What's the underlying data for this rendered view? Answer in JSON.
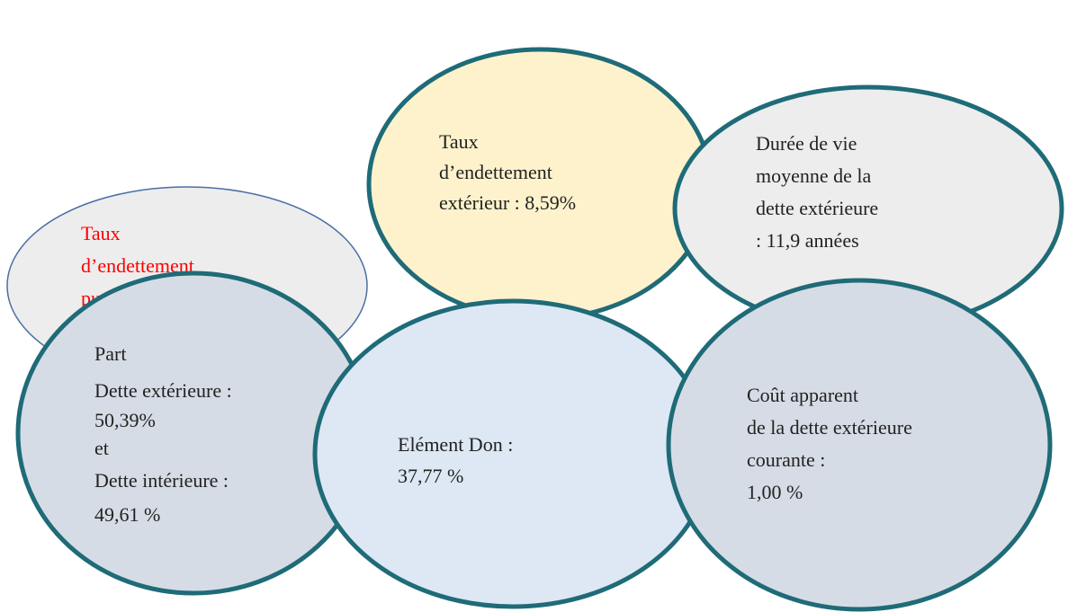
{
  "nodes": [
    {
      "lines": [
        "Taux",
        "d’endettement",
        "pu"
      ]
    },
    {
      "lines": [
        "Taux",
        "d’endettement",
        "extérieur : 8,59%"
      ]
    },
    {
      "lines": [
        "Durée de vie",
        "moyenne de la",
        "dette extérieure",
        ": 11,9 années"
      ]
    },
    {
      "lines": [
        "Part",
        "Dette extérieure :",
        "50,39%",
        "et",
        "Dette intérieure :",
        "49,61 %"
      ]
    },
    {
      "lines": [
        "Elément Don :",
        "37,77 %"
      ]
    },
    {
      "lines": [
        "Coût apparent",
        "de la dette extérieure",
        "courante :",
        "1,00 %"
      ]
    }
  ]
}
